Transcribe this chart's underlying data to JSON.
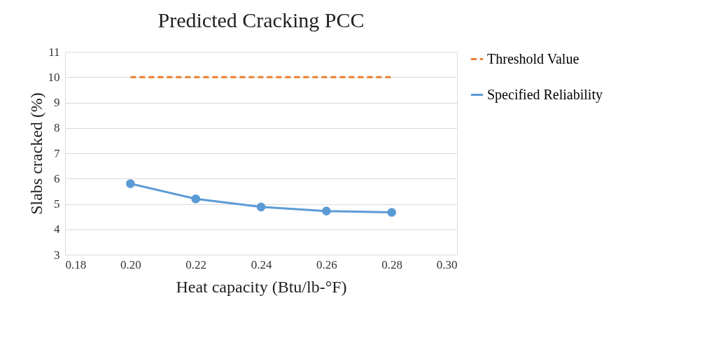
{
  "chart_data": {
    "type": "line",
    "title": "Predicted Cracking PCC",
    "xlabel": "Heat capacity (Btu/lb-°F)",
    "ylabel": "Slabs cracked (%)",
    "x": [
      0.2,
      0.22,
      0.24,
      0.26,
      0.28
    ],
    "series": [
      {
        "name": "Threshold Value",
        "color": "#ed7d31",
        "values": [
          10,
          10,
          10,
          10,
          10
        ],
        "line_style": "dashed",
        "marker": "none"
      },
      {
        "name": "Specified Reliability",
        "color": "#5b9bd5",
        "values": [
          5.8,
          5.2,
          4.88,
          4.72,
          4.67
        ],
        "line_style": "solid",
        "marker": "circle"
      }
    ],
    "xlim": [
      0.18,
      0.3
    ],
    "xticks": [
      {
        "value": 0.18,
        "label": "0.18"
      },
      {
        "value": 0.2,
        "label": "0.20"
      },
      {
        "value": 0.22,
        "label": "0.22"
      },
      {
        "value": 0.24,
        "label": "0.24"
      },
      {
        "value": 0.26,
        "label": "0.26"
      },
      {
        "value": 0.28,
        "label": "0.28"
      },
      {
        "value": 0.3,
        "label": "0.30"
      }
    ],
    "ylim": [
      3,
      11
    ],
    "yticks": [
      3,
      4,
      5,
      6,
      7,
      8,
      9,
      10,
      11
    ],
    "grid": "y",
    "legend": "right"
  }
}
